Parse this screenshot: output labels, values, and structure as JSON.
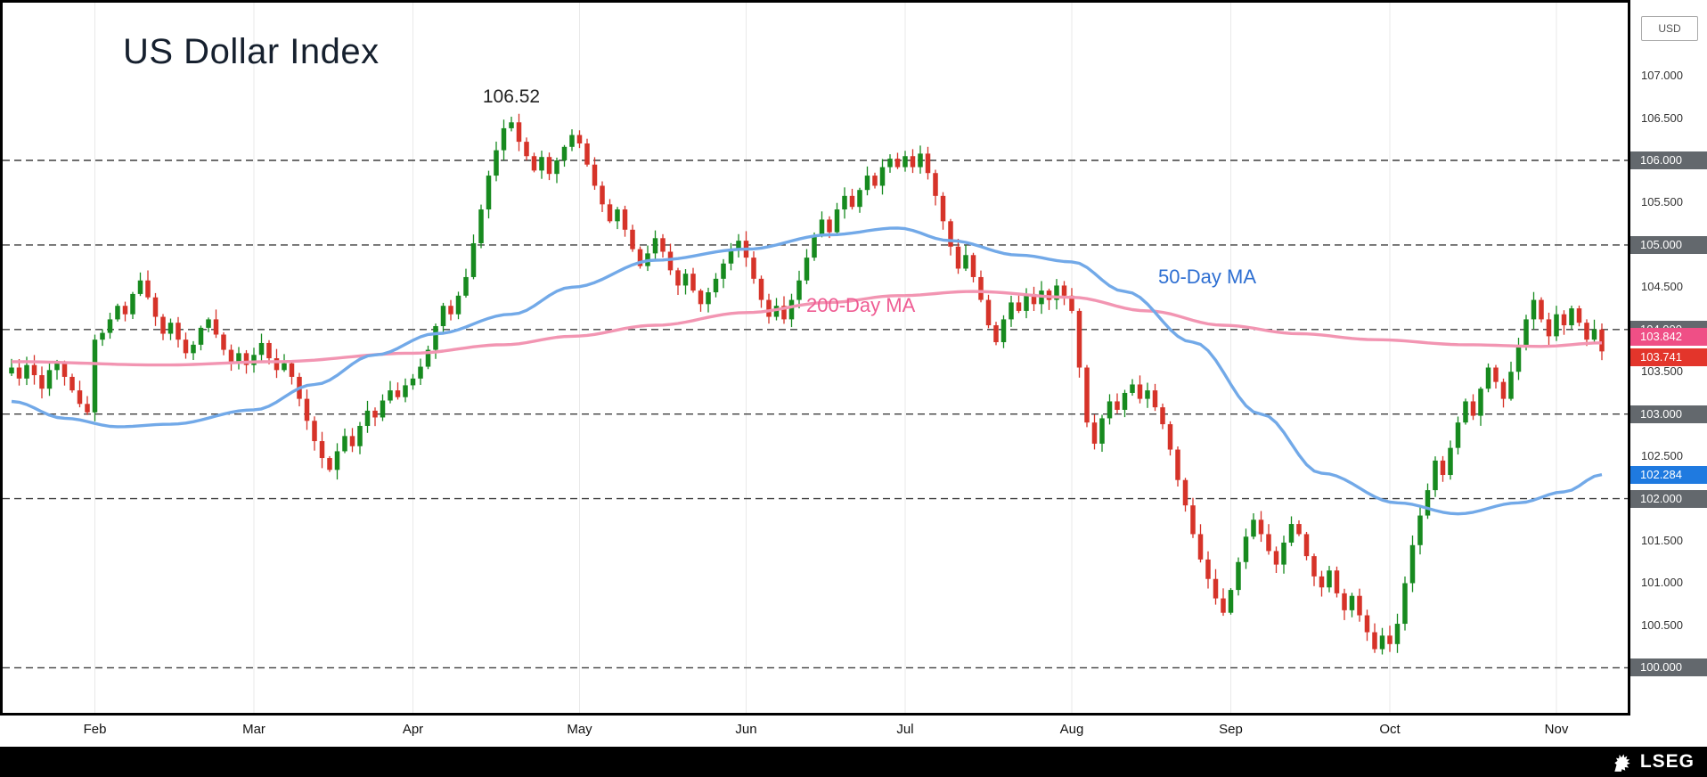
{
  "title": "US Dollar Index",
  "currency_badge": "USD",
  "annotations": {
    "peak_label": "106.52",
    "ma50_label": "50-Day MA",
    "ma200_label": "200-Day MA"
  },
  "footer": {
    "brand": "LSEG"
  },
  "colors": {
    "up": "#178a1f",
    "down": "#d63329",
    "ma50": "#72a9e8",
    "ma200": "#f295b2",
    "grid_dash": "#3f3f3f",
    "month_grid": "#e9e9e9",
    "badge_gray": "#63686d",
    "badge_pink": "#ef4f86",
    "badge_red": "#e3352b",
    "badge_blue": "#1f7ae0"
  },
  "y_axis": {
    "plain_ticks": [
      {
        "label": "107.000",
        "value": 107.0
      },
      {
        "label": "106.500",
        "value": 106.5
      },
      {
        "label": "105.500",
        "value": 105.5
      },
      {
        "label": "104.500",
        "value": 104.5
      },
      {
        "label": "103.500",
        "value": 103.5
      },
      {
        "label": "102.500",
        "value": 102.5
      },
      {
        "label": "101.500",
        "value": 101.5
      },
      {
        "label": "101.000",
        "value": 101.0
      },
      {
        "label": "100.500",
        "value": 100.5
      }
    ],
    "gridline_badges": [
      {
        "label": "106.000",
        "value": 106.0
      },
      {
        "label": "105.000",
        "value": 105.0
      },
      {
        "label": "104.000",
        "value": 104.0
      },
      {
        "label": "103.000",
        "value": 103.0
      },
      {
        "label": "102.000",
        "value": 102.0
      },
      {
        "label": "100.000",
        "value": 100.0
      }
    ],
    "value_badges": [
      {
        "label": "103.842",
        "value": 103.842,
        "type": "pink",
        "nudge": -7
      },
      {
        "label": "103.741",
        "value": 103.741,
        "type": "red",
        "nudge": 7
      },
      {
        "label": "102.284",
        "value": 102.284,
        "type": "blue",
        "nudge": 0
      }
    ]
  },
  "chart_data": {
    "type": "candlestick",
    "title": "US Dollar Index",
    "ylabel": "USD",
    "ylim": [
      99.5,
      107.87
    ],
    "y_gridlines": [
      106.0,
      105.0,
      104.0,
      103.0,
      102.0,
      100.0
    ],
    "x_months": [
      {
        "label": "Feb",
        "i": 11
      },
      {
        "label": "Mar",
        "i": 32
      },
      {
        "label": "Apr",
        "i": 53
      },
      {
        "label": "May",
        "i": 75
      },
      {
        "label": "Jun",
        "i": 97
      },
      {
        "label": "Jul",
        "i": 118
      },
      {
        "label": "Aug",
        "i": 140
      },
      {
        "label": "Sep",
        "i": 161
      },
      {
        "label": "Oct",
        "i": 182
      },
      {
        "label": "Nov",
        "i": 204
      }
    ],
    "first_open": 103.48,
    "closes": [
      103.55,
      103.42,
      103.58,
      103.46,
      103.3,
      103.52,
      103.6,
      103.44,
      103.28,
      103.12,
      103.02,
      103.88,
      103.96,
      104.12,
      104.28,
      104.18,
      104.42,
      104.58,
      104.38,
      104.15,
      103.95,
      104.08,
      103.88,
      103.72,
      103.82,
      104.02,
      104.12,
      103.94,
      103.76,
      103.62,
      103.72,
      103.58,
      103.7,
      103.84,
      103.66,
      103.52,
      103.6,
      103.44,
      103.18,
      102.92,
      102.68,
      102.48,
      102.34,
      102.56,
      102.74,
      102.62,
      102.86,
      103.04,
      102.96,
      103.16,
      103.28,
      103.2,
      103.34,
      103.42,
      103.56,
      103.76,
      104.04,
      104.28,
      104.18,
      104.4,
      104.62,
      105.02,
      105.42,
      105.82,
      106.12,
      106.38,
      106.45,
      106.22,
      106.05,
      105.88,
      106.04,
      105.84,
      106.0,
      106.16,
      106.3,
      106.2,
      105.95,
      105.7,
      105.48,
      105.28,
      105.42,
      105.18,
      104.95,
      104.75,
      104.9,
      105.08,
      104.92,
      104.7,
      104.52,
      104.66,
      104.46,
      104.3,
      104.44,
      104.6,
      104.78,
      104.95,
      105.05,
      104.85,
      104.6,
      104.35,
      104.15,
      104.28,
      104.12,
      104.35,
      104.58,
      104.85,
      105.12,
      105.3,
      105.15,
      105.42,
      105.58,
      105.45,
      105.65,
      105.82,
      105.7,
      105.92,
      106.02,
      105.92,
      106.05,
      105.92,
      106.08,
      105.85,
      105.58,
      105.28,
      104.98,
      104.72,
      104.88,
      104.62,
      104.35,
      104.05,
      103.85,
      104.12,
      104.32,
      104.22,
      104.42,
      104.3,
      104.46,
      104.35,
      104.52,
      104.4,
      104.22,
      103.55,
      102.9,
      102.65,
      102.95,
      103.15,
      103.05,
      103.25,
      103.35,
      103.18,
      103.28,
      103.08,
      102.88,
      102.58,
      102.22,
      101.92,
      101.58,
      101.28,
      101.05,
      100.82,
      100.65,
      100.92,
      101.25,
      101.55,
      101.75,
      101.58,
      101.38,
      101.22,
      101.48,
      101.7,
      101.58,
      101.32,
      101.08,
      100.95,
      101.15,
      100.88,
      100.68,
      100.85,
      100.62,
      100.42,
      100.22,
      100.38,
      100.28,
      100.52,
      101.0,
      101.45,
      101.8,
      102.1,
      102.45,
      102.28,
      102.6,
      102.9,
      103.15,
      102.98,
      103.3,
      103.55,
      103.38,
      103.18,
      103.5,
      103.8,
      104.12,
      104.35,
      104.12,
      103.92,
      104.18,
      104.05,
      104.25,
      104.08,
      103.88,
      104.0,
      103.741
    ],
    "peak_annotation": {
      "text": "106.52",
      "candle_index": 66,
      "price": 106.52
    },
    "ma_series": [
      {
        "name": "50-Day MA",
        "color_key": "ma50",
        "last_value": 102.284,
        "points": [
          [
            0,
            103.15
          ],
          [
            7,
            102.95
          ],
          [
            14,
            102.85
          ],
          [
            21,
            102.88
          ],
          [
            32,
            103.05
          ],
          [
            40,
            103.35
          ],
          [
            48,
            103.7
          ],
          [
            56,
            103.95
          ],
          [
            66,
            104.18
          ],
          [
            74,
            104.5
          ],
          [
            85,
            104.82
          ],
          [
            97,
            104.95
          ],
          [
            108,
            105.12
          ],
          [
            117,
            105.2
          ],
          [
            124,
            105.05
          ],
          [
            133,
            104.88
          ],
          [
            140,
            104.8
          ],
          [
            147,
            104.45
          ],
          [
            156,
            103.85
          ],
          [
            165,
            103.0
          ],
          [
            173,
            102.3
          ],
          [
            183,
            101.95
          ],
          [
            191,
            101.82
          ],
          [
            199,
            101.95
          ],
          [
            205,
            102.08
          ],
          [
            210,
            102.284
          ]
        ]
      },
      {
        "name": "200-Day MA",
        "color_key": "ma200",
        "last_value": 103.842,
        "points": [
          [
            0,
            103.62
          ],
          [
            20,
            103.58
          ],
          [
            35,
            103.62
          ],
          [
            53,
            103.72
          ],
          [
            65,
            103.82
          ],
          [
            74,
            103.92
          ],
          [
            85,
            104.05
          ],
          [
            97,
            104.2
          ],
          [
            108,
            104.32
          ],
          [
            117,
            104.4
          ],
          [
            127,
            104.45
          ],
          [
            140,
            104.38
          ],
          [
            150,
            104.22
          ],
          [
            160,
            104.05
          ],
          [
            170,
            103.95
          ],
          [
            180,
            103.88
          ],
          [
            192,
            103.82
          ],
          [
            202,
            103.8
          ],
          [
            210,
            103.842
          ]
        ]
      }
    ]
  }
}
